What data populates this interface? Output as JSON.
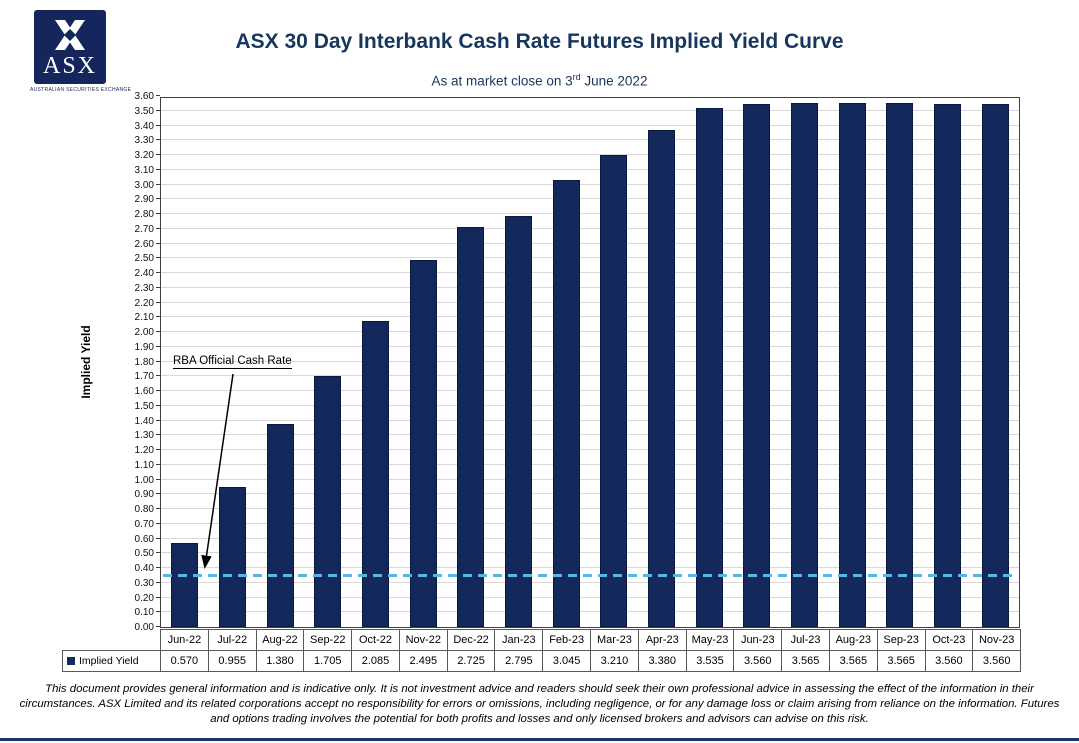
{
  "logo": {
    "brand": "ASX",
    "caption": "AUSTRALIAN SECURITIES EXCHANGE"
  },
  "header": {
    "title": "ASX 30 Day Interbank Cash Rate Futures Implied Yield Curve",
    "subtitle_prefix": "As at market close on 3",
    "subtitle_sup": "rd",
    "subtitle_suffix": " June 2022"
  },
  "chart_data": {
    "type": "bar",
    "title": "ASX 30 Day Interbank Cash Rate Futures Implied Yield Curve",
    "subtitle": "As at market close on 3rd June 2022",
    "categories": [
      "Jun-22",
      "Jul-22",
      "Aug-22",
      "Sep-22",
      "Oct-22",
      "Nov-22",
      "Dec-22",
      "Jan-23",
      "Feb-23",
      "Mar-23",
      "Apr-23",
      "May-23",
      "Jun-23",
      "Jul-23",
      "Aug-23",
      "Sep-23",
      "Oct-23",
      "Nov-23"
    ],
    "series": [
      {
        "name": "Implied Yield",
        "values": [
          0.57,
          0.955,
          1.38,
          1.705,
          2.085,
          2.495,
          2.725,
          2.795,
          3.045,
          3.21,
          3.38,
          3.535,
          3.56,
          3.565,
          3.565,
          3.565,
          3.56,
          3.56
        ]
      }
    ],
    "xlabel": "",
    "ylabel": "Implied Yield",
    "ylim": [
      0,
      3.6
    ],
    "ytick_step": 0.1,
    "value_decimals": 3,
    "grid": true,
    "bar_color": "#13295B",
    "legend_position": "table-row-left",
    "annotation": {
      "label": "RBA Official Cash Rate",
      "value": 0.35,
      "line_color": "#56B7E6",
      "line_style": "dashed"
    }
  },
  "footer": {
    "disclaimer": "This document provides general information and is indicative only. It is not investment advice and readers should seek their own professional advice in assessing the effect of the information in their circumstances. ASX Limited and its related corporations accept no responsibility for errors or omissions, including negligence, or for any damage loss or claim arising from reliance on the information. Futures and options trading involves the potential for both profits and losses and only licensed brokers and advisors can advise on this risk."
  }
}
